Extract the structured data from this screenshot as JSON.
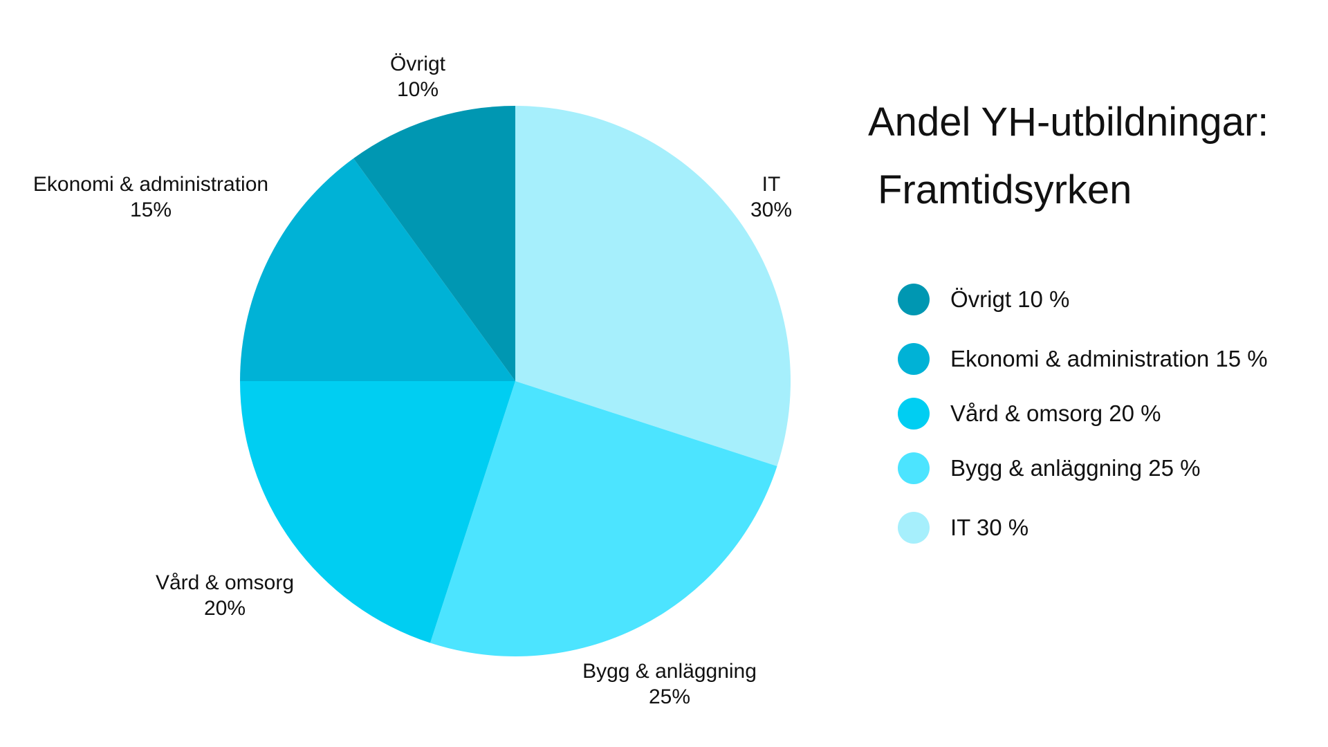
{
  "title": {
    "line1": "Andel YH-utbildningar:",
    "line2": "Framtidsyrken"
  },
  "chart_data": {
    "type": "pie",
    "start": "12 o'clock",
    "direction": "clockwise",
    "slices": [
      {
        "name": "IT",
        "value": 30,
        "pct_label": "30%",
        "color": "#A6EFFC"
      },
      {
        "name": "Bygg & anläggning",
        "value": 25,
        "pct_label": "25%",
        "color": "#4CE4FF"
      },
      {
        "name": "Vård & omsorg",
        "value": 20,
        "pct_label": "20%",
        "color": "#00CEF2"
      },
      {
        "name": "Ekonomi & administration",
        "value": 15,
        "pct_label": "15%",
        "color": "#00B2D6"
      },
      {
        "name": "Övrigt",
        "value": 10,
        "pct_label": "10%",
        "color": "#0097B2"
      }
    ]
  },
  "legend": {
    "items": [
      {
        "label": "Övrigt 10 %",
        "color": "#0097B2"
      },
      {
        "label": "Ekonomi & administration 15 %",
        "color": "#00B2D6"
      },
      {
        "label": "Vård & omsorg 20 %",
        "color": "#00CEF2"
      },
      {
        "label": "Bygg & anläggning 25 %",
        "color": "#4CE4FF"
      },
      {
        "label": "IT 30 %",
        "color": "#A6EFFC"
      }
    ]
  }
}
